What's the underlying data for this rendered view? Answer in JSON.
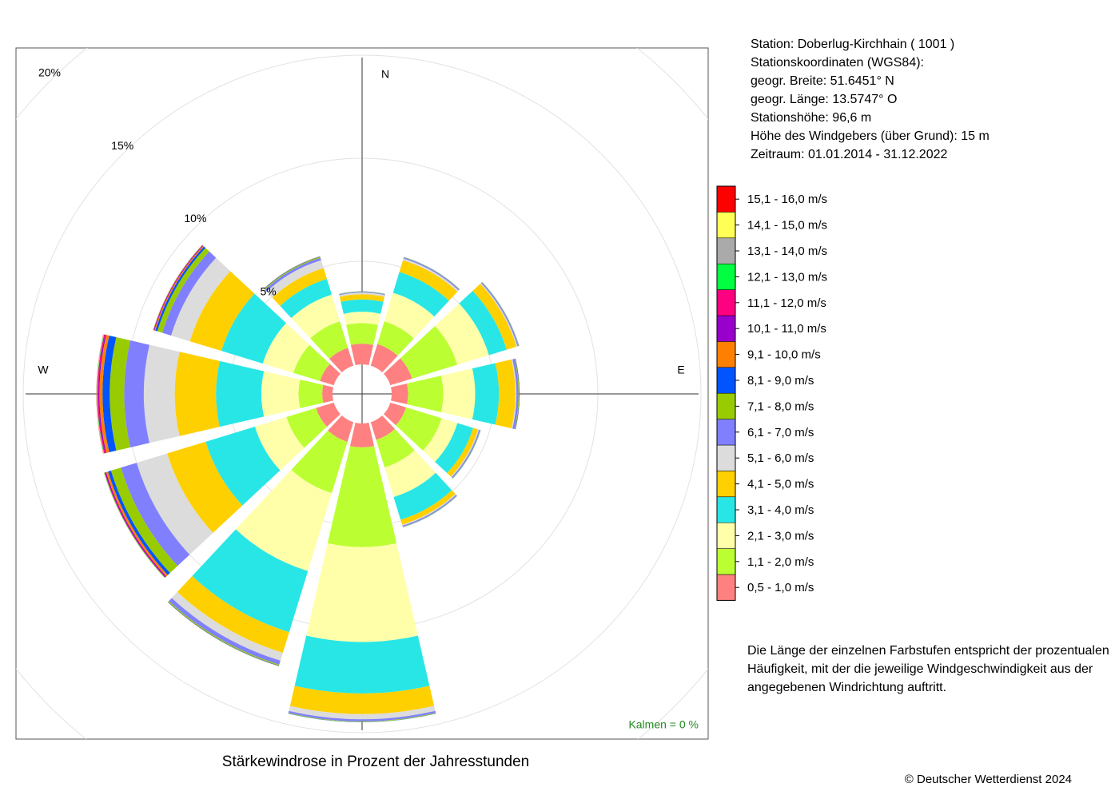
{
  "chart_data": {
    "type": "windrose",
    "title": "Stärkewindrose in Prozent der Jahresstunden",
    "info": [
      "Station:  Doberlug-Kirchhain  ( 1001 )",
      "Stationskoordinaten (WGS84):",
      "geogr. Breite: 51.6451° N",
      "geogr. Länge: 13.5747° O",
      "Stationshöhe: 96,6 m",
      "Höhe des Windgebers (über Grund): 15 m",
      "Zeitraum: 01.01.2014 - 31.12.2022"
    ],
    "note": [
      "Die Länge der einzelnen Farbstufen entspricht der prozentualen",
      "Häufigkeit, mit der die jeweilige Windgeschwindigkeit aus der",
      "angegebenen Windrichtung auftritt."
    ],
    "calm_label": "Kalmen  =  0 %",
    "copyright": "© Deutscher Wetterdienst  2024",
    "categories": [
      "N",
      null,
      null,
      "E",
      null,
      null,
      null,
      null,
      null,
      "W",
      null,
      null
    ],
    "rlim": [
      0,
      20
    ],
    "rticks": [
      {
        "value": 5,
        "label": "5%"
      },
      {
        "value": 10,
        "label": "10%"
      },
      {
        "value": 15,
        "label": "15%"
      },
      {
        "value": 20,
        "label": "20%"
      }
    ],
    "series": [
      {
        "name": "0,5 - 1,0 m/s",
        "color": "#ff8080",
        "values": [
          1.0,
          1.1,
          1.1,
          0.8,
          0.8,
          0.9,
          1.16,
          1.0,
          0.9,
          0.5,
          0.7,
          0.9
        ]
      },
      {
        "name": "1,1 - 2,0 m/s",
        "color": "#bbff33",
        "values": [
          1.0,
          1.15,
          2.3,
          1.7,
          1.8,
          1.4,
          4.84,
          2.6,
          1.5,
          1.15,
          1.35,
          1.35
        ]
      },
      {
        "name": "2,1 - 3,0 m/s",
        "color": "#ffffaa",
        "values": [
          0.55,
          1.45,
          1.6,
          1.55,
          0.8,
          1.5,
          4.6,
          3.95,
          1.6,
          1.8,
          1.55,
          1.35
        ]
      },
      {
        "name": "3,1 - 4,0 m/s",
        "color": "#28e6e6",
        "values": [
          0.6,
          1.05,
          0.9,
          1.15,
          0.8,
          1.15,
          2.5,
          3.1,
          2.5,
          2.2,
          2.1,
          0.8
        ]
      },
      {
        "name": "4,1 - 5,0 m/s",
        "color": "#ffd000",
        "values": [
          0.25,
          0.6,
          0.5,
          0.8,
          0.25,
          0.25,
          1.0,
          1.05,
          1.95,
          2.0,
          1.6,
          0.55
        ]
      },
      {
        "name": "5,1 - 6,0 m/s",
        "color": "#dcdcdc",
        "values": [
          0.08,
          0.08,
          0.05,
          0.05,
          0.05,
          0.05,
          0.25,
          0.4,
          1.55,
          1.5,
          0.95,
          0.4
        ]
      },
      {
        "name": "6,1 - 7,0 m/s",
        "color": "#8080ff",
        "values": [
          0.03,
          0.05,
          0.05,
          0.1,
          0.05,
          0.05,
          0.1,
          0.2,
          0.8,
          0.95,
          0.45,
          0.12
        ]
      },
      {
        "name": "7,1 - 8,0 m/s",
        "color": "#99cc00",
        "values": [
          0.02,
          0.02,
          0.02,
          0.03,
          0.02,
          0.02,
          0.03,
          0.05,
          0.5,
          0.7,
          0.25,
          0.05
        ]
      },
      {
        "name": "8,1 - 9,0 m/s",
        "color": "#0055ff",
        "values": [
          0.01,
          0.01,
          0.01,
          0.02,
          0.01,
          0.01,
          0.01,
          0.02,
          0.15,
          0.35,
          0.1,
          0.02
        ]
      },
      {
        "name": "9,1 - 10,0 m/s",
        "color": "#ff8000",
        "values": [
          0,
          0,
          0,
          0.01,
          0,
          0,
          0,
          0.01,
          0.1,
          0.15,
          0.05,
          0.01
        ]
      },
      {
        "name": "10,1 - 11,0 m/s",
        "color": "#9900cc",
        "values": [
          0,
          0,
          0,
          0,
          0,
          0,
          0,
          0,
          0.05,
          0.05,
          0.03,
          0
        ]
      },
      {
        "name": "11,1 - 12,0 m/s",
        "color": "#ff0080",
        "values": [
          0,
          0,
          0,
          0,
          0,
          0,
          0,
          0,
          0.03,
          0.05,
          0.02,
          0
        ]
      },
      {
        "name": "12,1 - 13,0 m/s",
        "color": "#00ff40",
        "values": [
          0,
          0,
          0,
          0,
          0,
          0,
          0,
          0,
          0.02,
          0.02,
          0.01,
          0
        ]
      },
      {
        "name": "13,1 - 14,0 m/s",
        "color": "#aaaaaa",
        "values": [
          0,
          0,
          0,
          0,
          0,
          0,
          0,
          0,
          0.01,
          0.01,
          0.01,
          0
        ]
      },
      {
        "name": "14,1 - 15,0 m/s",
        "color": "#ffff55",
        "values": [
          0,
          0,
          0,
          0,
          0,
          0,
          0,
          0,
          0.01,
          0.01,
          0.01,
          0
        ]
      },
      {
        "name": "15,1 - 16,0 m/s",
        "color": "#ff0000",
        "values": [
          0,
          0,
          0,
          0,
          0,
          0,
          0,
          0,
          0,
          0.01,
          0,
          0
        ]
      }
    ]
  }
}
